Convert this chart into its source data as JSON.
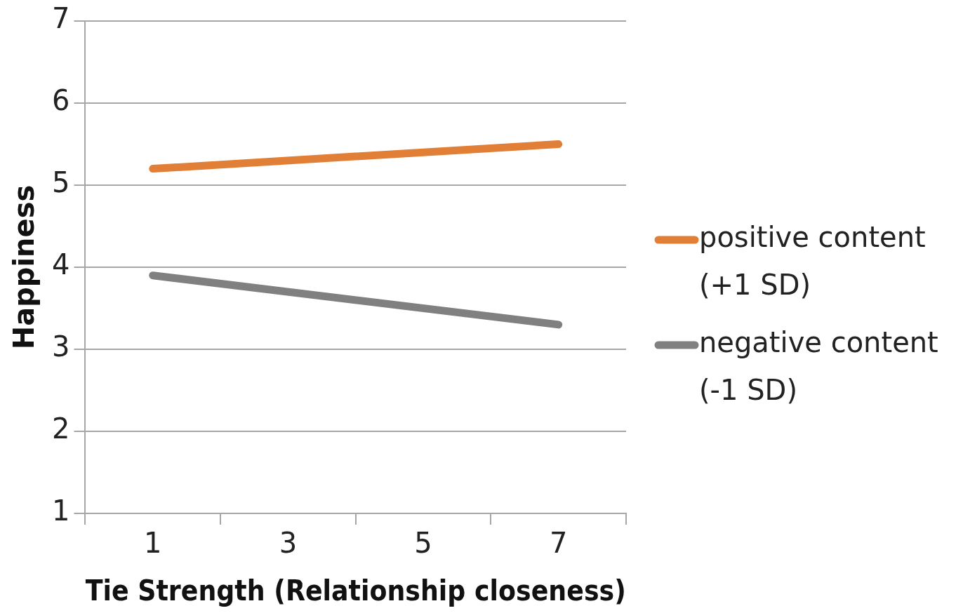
{
  "chart_data": {
    "type": "line",
    "xlabel": "Tie Strength (Relationship closeness)",
    "ylabel": "Happiness",
    "xlim": [
      0,
      8
    ],
    "xticks": [
      {
        "value": 0,
        "label": null
      },
      1,
      {
        "value": 2,
        "label": null
      },
      3,
      {
        "value": 4,
        "label": null
      },
      5,
      {
        "value": 6,
        "label": null
      },
      7,
      {
        "value": 8,
        "label": null
      }
    ],
    "ylim": [
      1,
      7
    ],
    "yticks": [
      1,
      2,
      3,
      4,
      5,
      6,
      7
    ],
    "grid": "y",
    "legend": "right",
    "marker": "none",
    "line_style": "solid",
    "x": [
      1,
      7
    ],
    "series": [
      {
        "name": "positive content (+1 SD)",
        "color": "#e07f35",
        "values": [
          5.2,
          5.5
        ]
      },
      {
        "name": "negative content (-1 SD)",
        "color": "#808080",
        "values": [
          3.9,
          3.3
        ]
      }
    ]
  }
}
